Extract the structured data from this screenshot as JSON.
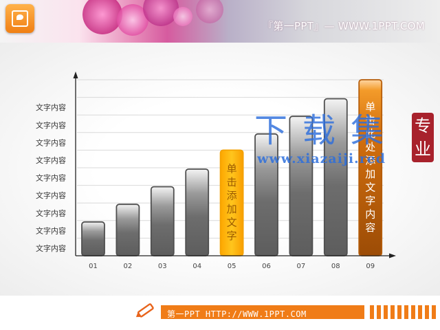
{
  "header": {
    "brand_text": "『第一PPT』— WWW.1PPT.COM",
    "icon": "powerpoint-icon",
    "colors": {
      "accent": "#f07c17",
      "banner_pink": "#d65b9f"
    }
  },
  "footer": {
    "text": "第一PPT HTTP://WWW.1PPT.COM",
    "icon": "pencil-icon"
  },
  "watermark": {
    "big_text": "下载集",
    "url_text": "www.xiazaiji.red",
    "seal_text": [
      "专",
      "业"
    ]
  },
  "chart_data": {
    "type": "bar",
    "categories": [
      "01",
      "02",
      "03",
      "04",
      "05",
      "06",
      "07",
      "08",
      "09"
    ],
    "values": [
      2,
      3,
      4,
      5,
      6,
      7,
      8,
      9,
      10
    ],
    "ylim": [
      0,
      10
    ],
    "y_tick_labels": [
      "文字内容",
      "文字内容",
      "文字内容",
      "文字内容",
      "文字内容",
      "文字内容",
      "文字内容",
      "文字内容",
      "文字内容"
    ],
    "highlighted": [
      {
        "index": 4,
        "label": "单击添加文字",
        "color": "#fdb515"
      },
      {
        "index": 8,
        "label": "单击此处添加文字内容",
        "color": "#d4700e"
      }
    ],
    "bar_color": "#6d6d6d",
    "grid": true,
    "legend": "none"
  }
}
